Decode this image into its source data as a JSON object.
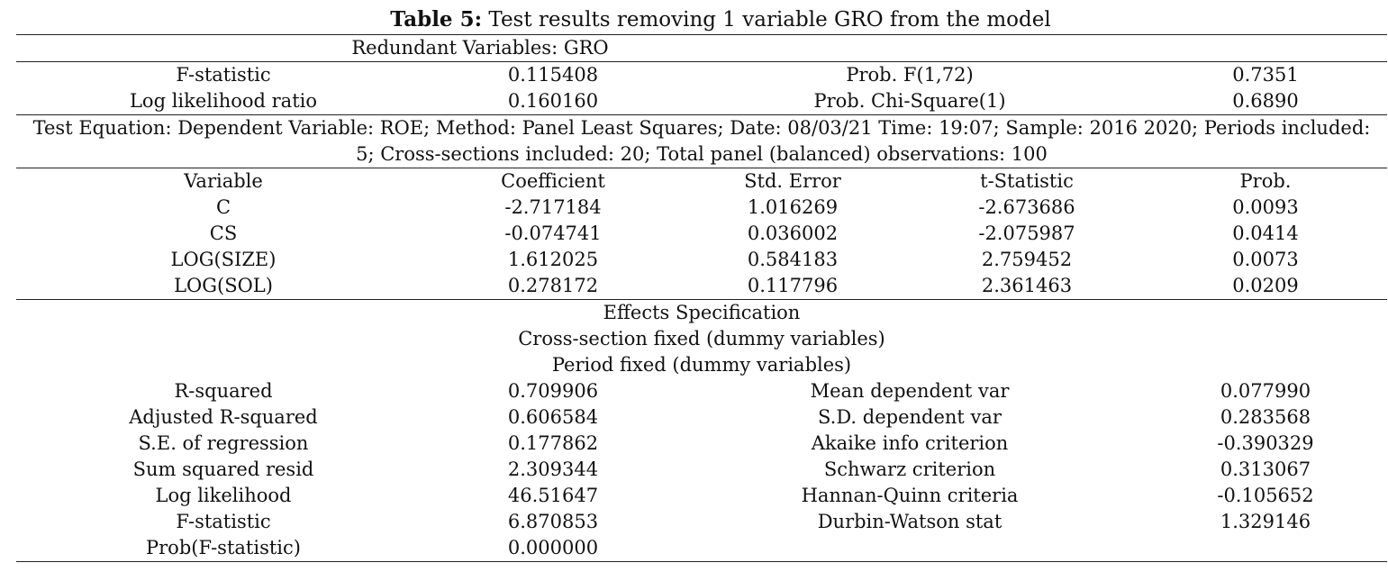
{
  "title": {
    "label": "Table 5:",
    "text": " Test results removing 1 variable GRO from the model"
  },
  "redundant": "Redundant Variables: GRO",
  "test_stats": [
    {
      "label": "F-statistic",
      "value": "0.115408",
      "prob_label": "Prob. F(1,72)",
      "prob_value": "0.7351"
    },
    {
      "label": "Log likelihood ratio",
      "value": "0.160160",
      "prob_label": "Prob. Chi-Square(1)",
      "prob_value": "0.6890"
    }
  ],
  "test_equation": {
    "line1": "Test Equation: Dependent Variable: ROE; Method: Panel Least Squares; Date: 08/03/21 Time: 19:07; Sample: 2016 2020; Periods included:",
    "line2": "5; Cross-sections included: 20; Total panel (balanced) observations: 100"
  },
  "coef_headers": [
    "Variable",
    "Coefficient",
    "Std. Error",
    "t-Statistic",
    "Prob."
  ],
  "coef_rows": [
    [
      "C",
      "-2.717184",
      "1.016269",
      "-2.673686",
      "0.0093"
    ],
    [
      "CS",
      "-0.074741",
      "0.036002",
      "-2.075987",
      "0.0414"
    ],
    [
      "LOG(SIZE)",
      "1.612025",
      "0.584183",
      "2.759452",
      "0.0073"
    ],
    [
      "LOG(SOL)",
      "0.278172",
      "0.117796",
      "2.361463",
      "0.0209"
    ]
  ],
  "effects": {
    "heading": "Effects Specification",
    "cross_section": "Cross-section fixed (dummy variables)",
    "period": "Period fixed (dummy variables)"
  },
  "summary_rows": [
    [
      "R-squared",
      "0.709906",
      "Mean dependent var",
      "0.077990"
    ],
    [
      "Adjusted R-squared",
      "0.606584",
      "S.D. dependent var",
      "0.283568"
    ],
    [
      "S.E. of regression",
      "0.177862",
      "Akaike info criterion",
      "-0.390329"
    ],
    [
      "Sum squared resid",
      "2.309344",
      "Schwarz criterion",
      "0.313067"
    ],
    [
      "Log likelihood",
      "46.51647",
      "Hannan-Quinn criteria",
      "-0.105652"
    ],
    [
      "F-statistic",
      "6.870853",
      "Durbin-Watson stat",
      "1.329146"
    ],
    [
      "Prob(F-statistic)",
      "0.000000",
      "",
      ""
    ]
  ]
}
